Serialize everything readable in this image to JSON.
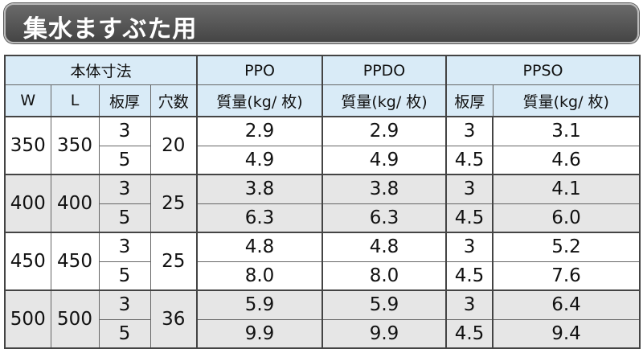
{
  "header": {
    "title": "集水ますぶた用"
  },
  "table": {
    "group_headers": [
      "本体寸法",
      "PPO",
      "PPDO",
      "PPSO"
    ],
    "column_headers": [
      "W",
      "L",
      "板厚",
      "穴数",
      "質量(kg/ 枚)",
      "質量(kg/ 枚)",
      "板厚",
      "質量(kg/ 枚)"
    ],
    "groups": [
      {
        "w": "350",
        "l": "350",
        "holes": "20",
        "rows": [
          [
            "3",
            "2.9",
            "2.9",
            "3",
            "3.1"
          ],
          [
            "5",
            "4.9",
            "4.9",
            "4.5",
            "4.6"
          ]
        ]
      },
      {
        "w": "400",
        "l": "400",
        "holes": "25",
        "rows": [
          [
            "3",
            "3.8",
            "3.8",
            "3",
            "4.1"
          ],
          [
            "5",
            "6.3",
            "6.3",
            "4.5",
            "6.0"
          ]
        ]
      },
      {
        "w": "450",
        "l": "450",
        "holes": "25",
        "rows": [
          [
            "3",
            "4.8",
            "4.8",
            "3",
            "5.2"
          ],
          [
            "5",
            "8.0",
            "8.0",
            "4.5",
            "7.6"
          ]
        ]
      },
      {
        "w": "500",
        "l": "500",
        "holes": "36",
        "rows": [
          [
            "3",
            "5.9",
            "5.9",
            "3",
            "6.4"
          ],
          [
            "5",
            "9.9",
            "9.9",
            "4.5",
            "9.4"
          ]
        ]
      }
    ]
  }
}
